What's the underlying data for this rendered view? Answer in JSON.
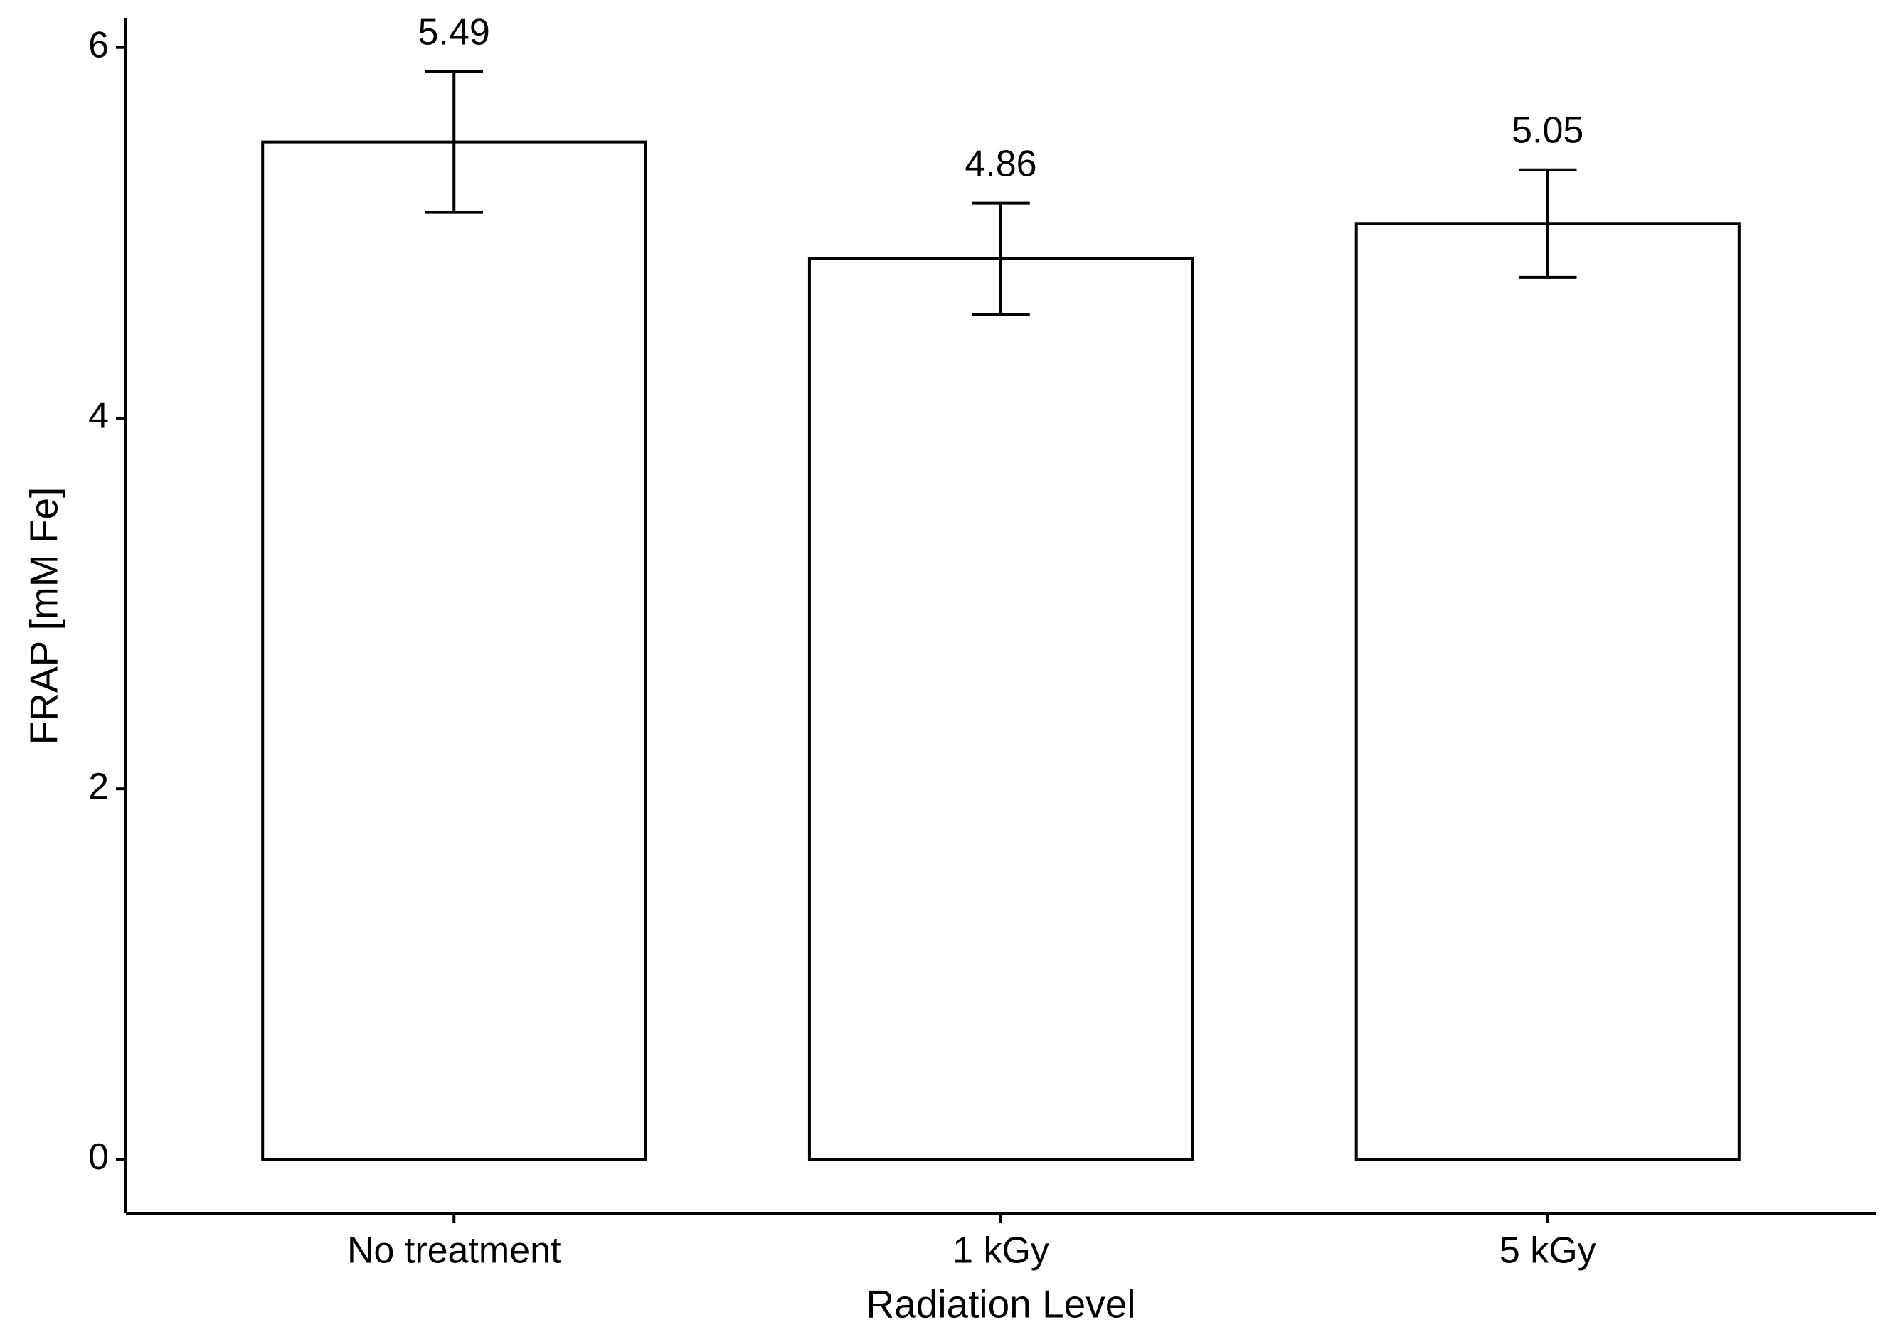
{
  "chart_data": {
    "type": "bar",
    "x_label": "Radiation Level",
    "y_label": "FRAP [mM Fe]",
    "categories": [
      "No treatment",
      "1 kGy",
      "5 kGy"
    ],
    "values": [
      5.49,
      4.86,
      5.05
    ],
    "errors": [
      0.38,
      0.3,
      0.29
    ],
    "color": "#ffffff",
    "edge_color": "#000000",
    "ylim": [
      -0.29,
      6.16
    ],
    "yticks": [
      0,
      2,
      4,
      6
    ],
    "grid": false
  }
}
